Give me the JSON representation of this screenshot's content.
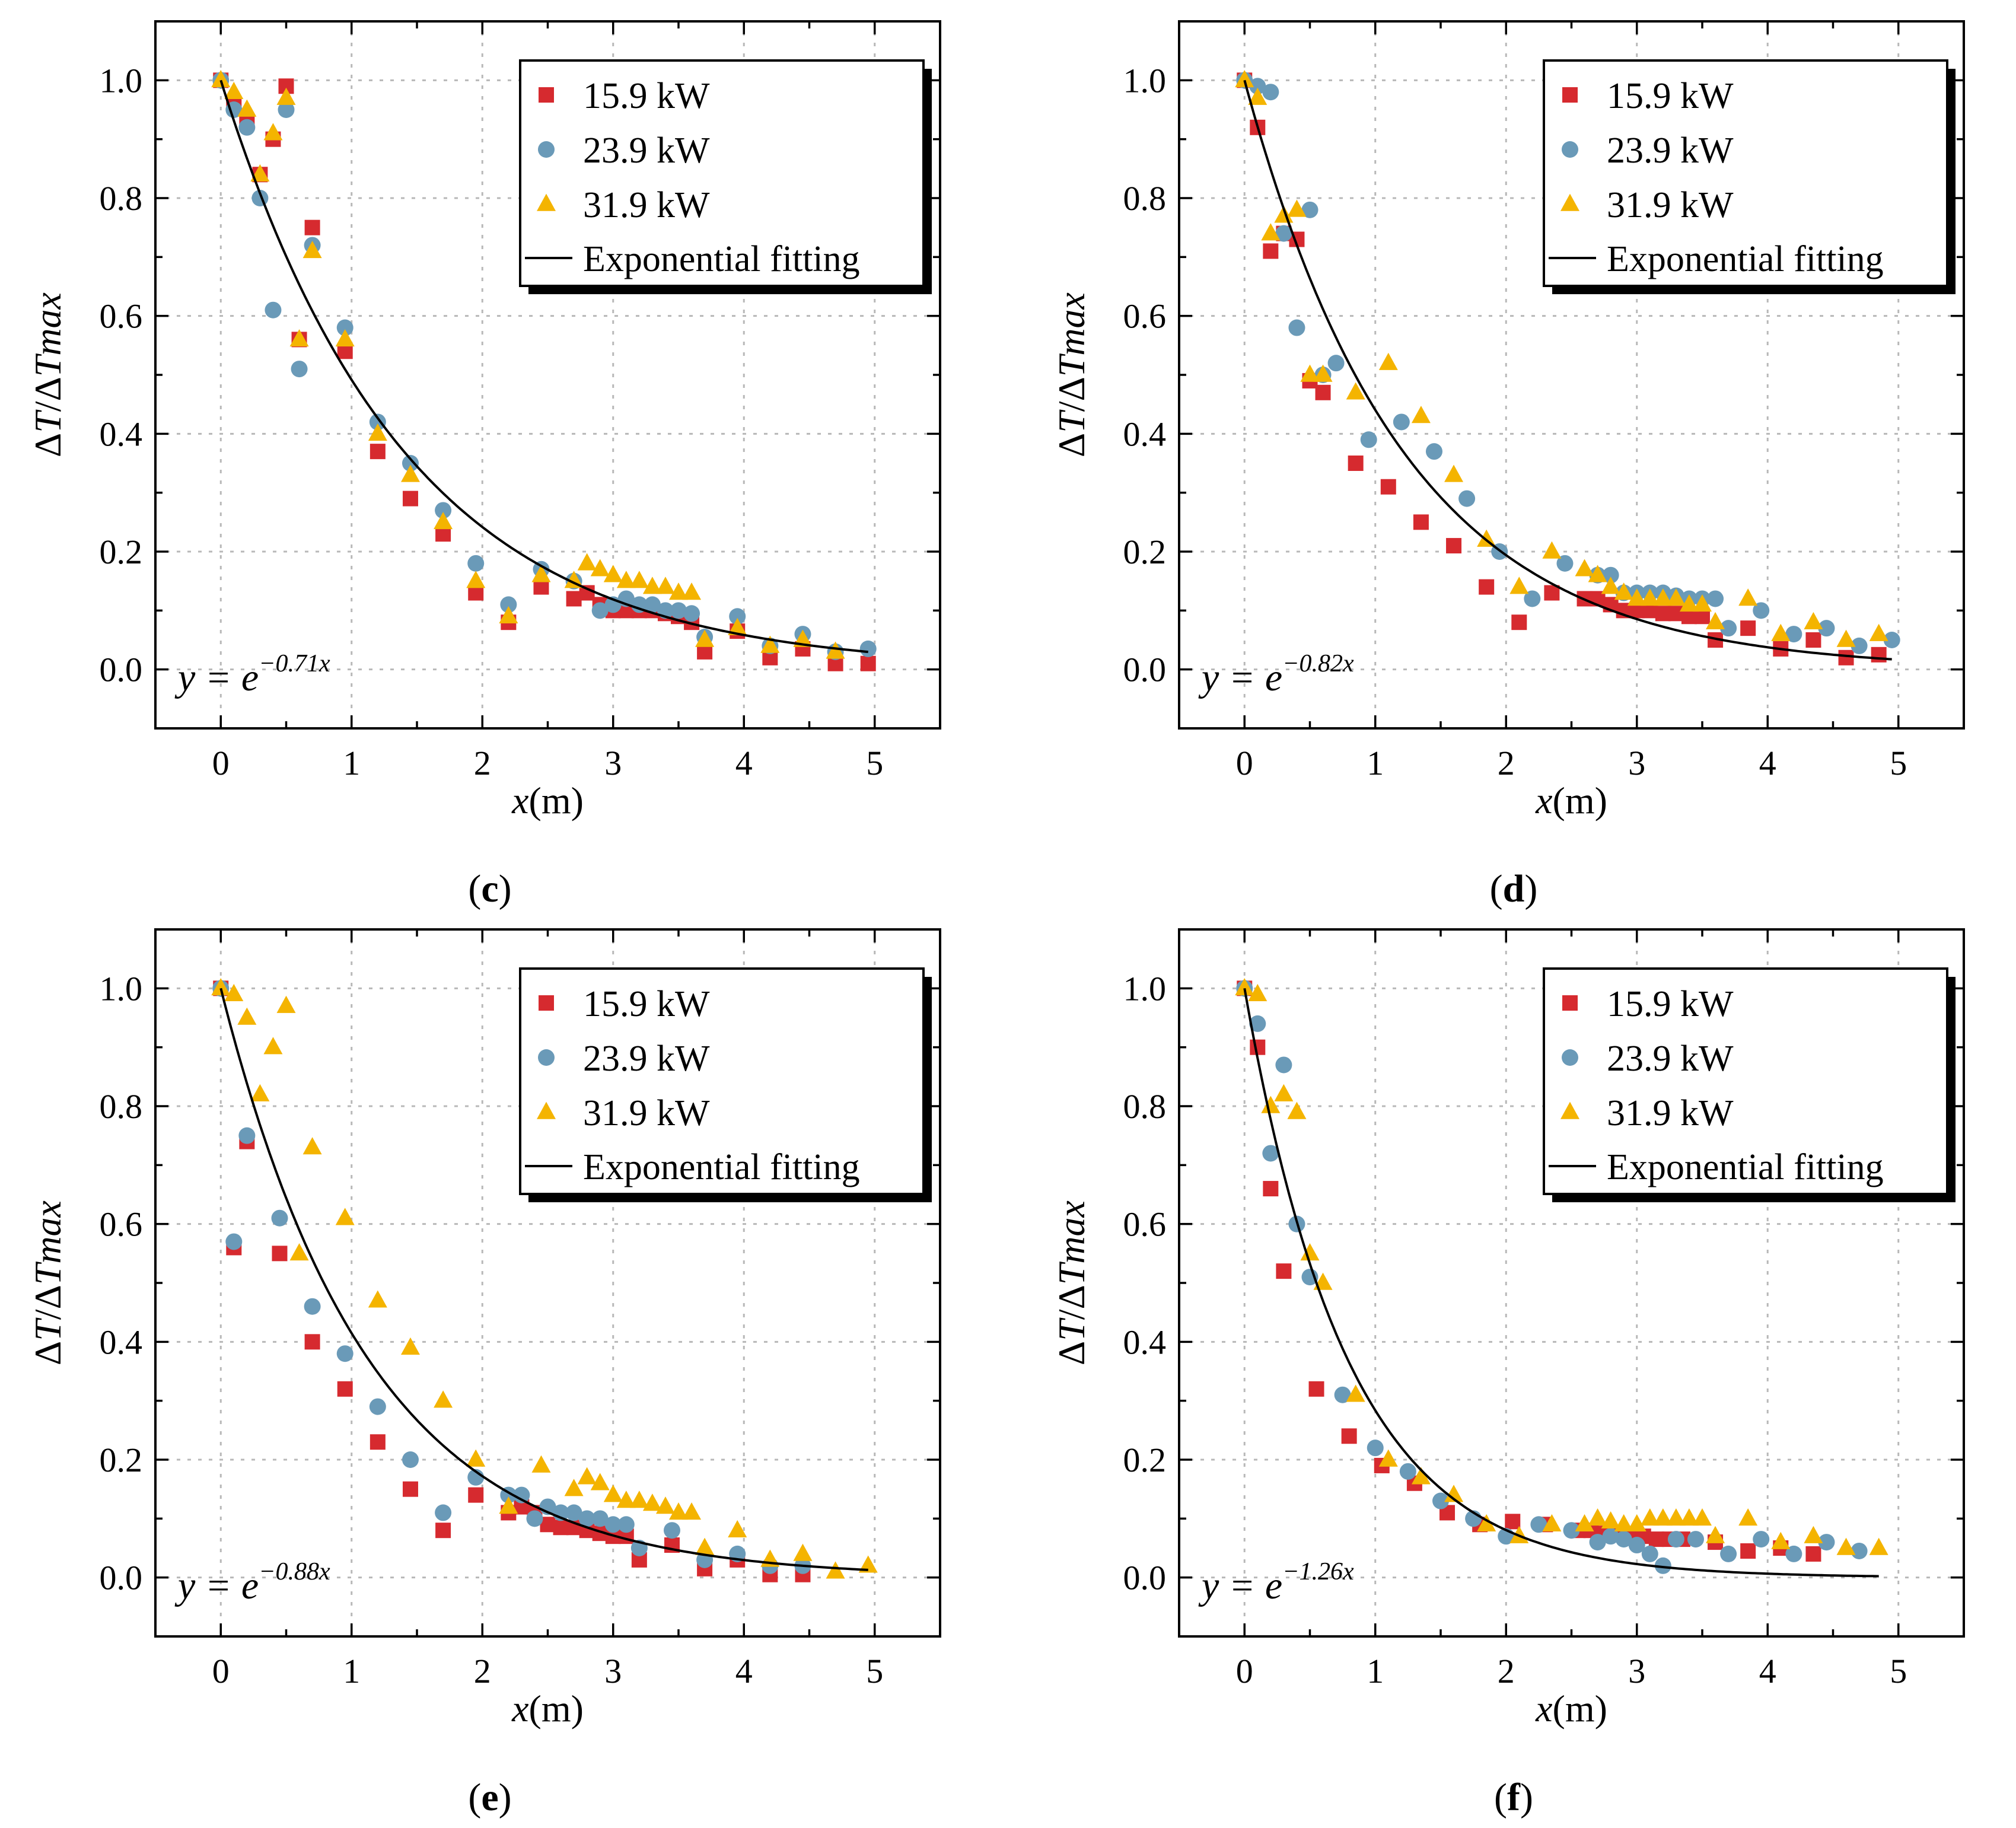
{
  "colors": {
    "s1": "#d62a2f",
    "s2": "#6a9ab8",
    "s3": "#f4b400",
    "fit": "#000000",
    "grid": "#b8b8b8"
  },
  "legend": {
    "s1": "15.9 kW",
    "s2": "23.9 kW",
    "s3": "31.9 kW",
    "fit": "Exponential fitting"
  },
  "axes": {
    "xlabel_var": "x",
    "xlabel_unit": "(m)",
    "ylabel_a": "Δ",
    "ylabel_b": "T",
    "ylabel_c": "/Δ",
    "ylabel_d": "Tmax",
    "xlim": [
      -0.5,
      5.5
    ],
    "ylim": [
      -0.1,
      1.1
    ],
    "xticks": [
      "0",
      "1",
      "2",
      "3",
      "4",
      "5"
    ],
    "yticks": [
      "0.0",
      "0.2",
      "0.4",
      "0.6",
      "0.8",
      "1.0"
    ]
  },
  "chart_data": [
    {
      "type": "scatter",
      "caption_letter": "c",
      "equation_base": "y = e",
      "equation_exp": "−0.71x",
      "fit_k": 0.71,
      "fit_xmax": 4.95,
      "series": [
        {
          "name": "15.9 kW",
          "marker": "square",
          "x": [
            0,
            0.1,
            0.2,
            0.3,
            0.4,
            0.5,
            0.6,
            0.7,
            0.95,
            1.2,
            1.45,
            1.7,
            1.95,
            2.2,
            2.45,
            2.7,
            2.8,
            2.9,
            3.0,
            3.1,
            3.2,
            3.3,
            3.4,
            3.5,
            3.6,
            3.7,
            3.95,
            4.2,
            4.45,
            4.7,
            4.95
          ],
          "y": [
            1.0,
            0.96,
            0.93,
            0.84,
            0.9,
            0.99,
            0.56,
            0.75,
            0.54,
            0.37,
            0.29,
            0.23,
            0.13,
            0.08,
            0.14,
            0.12,
            0.13,
            0.11,
            0.1,
            0.1,
            0.1,
            0.1,
            0.095,
            0.09,
            0.08,
            0.03,
            0.065,
            0.02,
            0.035,
            0.01,
            0.01
          ]
        },
        {
          "name": "23.9 kW",
          "marker": "circle",
          "x": [
            0,
            0.1,
            0.2,
            0.3,
            0.4,
            0.5,
            0.6,
            0.7,
            0.95,
            1.2,
            1.45,
            1.7,
            1.95,
            2.2,
            2.45,
            2.7,
            2.9,
            3.0,
            3.1,
            3.2,
            3.3,
            3.4,
            3.5,
            3.6,
            3.7,
            3.95,
            4.2,
            4.45,
            4.7,
            4.95
          ],
          "y": [
            1.0,
            0.95,
            0.92,
            0.8,
            0.61,
            0.95,
            0.51,
            0.72,
            0.58,
            0.42,
            0.35,
            0.27,
            0.18,
            0.11,
            0.17,
            0.15,
            0.1,
            0.11,
            0.12,
            0.11,
            0.11,
            0.1,
            0.1,
            0.095,
            0.055,
            0.09,
            0.04,
            0.06,
            0.03,
            0.035
          ]
        },
        {
          "name": "31.9 kW",
          "marker": "triangle",
          "x": [
            0,
            0.1,
            0.2,
            0.3,
            0.4,
            0.5,
            0.6,
            0.7,
            0.95,
            1.2,
            1.45,
            1.7,
            1.95,
            2.2,
            2.45,
            2.7,
            2.8,
            2.9,
            3.0,
            3.1,
            3.2,
            3.3,
            3.4,
            3.5,
            3.6,
            3.7,
            3.95,
            4.2,
            4.45,
            4.7
          ],
          "y": [
            1.0,
            0.98,
            0.95,
            0.84,
            0.91,
            0.97,
            0.56,
            0.71,
            0.56,
            0.4,
            0.33,
            0.25,
            0.15,
            0.09,
            0.16,
            0.15,
            0.18,
            0.17,
            0.16,
            0.15,
            0.15,
            0.14,
            0.14,
            0.13,
            0.13,
            0.05,
            0.07,
            0.04,
            0.05,
            0.03
          ]
        }
      ]
    },
    {
      "type": "scatter",
      "caption_letter": "d",
      "equation_base": "y = e",
      "equation_exp": "−0.82x",
      "fit_k": 0.82,
      "fit_xmax": 4.95,
      "series": [
        {
          "name": "15.9 kW",
          "marker": "square",
          "x": [
            0,
            0.1,
            0.2,
            0.3,
            0.4,
            0.5,
            0.6,
            0.85,
            1.1,
            1.35,
            1.6,
            1.85,
            2.1,
            2.35,
            2.6,
            2.7,
            2.8,
            2.9,
            3.0,
            3.1,
            3.2,
            3.3,
            3.4,
            3.5,
            3.6,
            3.85,
            4.1,
            4.35,
            4.6,
            4.85
          ],
          "y": [
            1.0,
            0.92,
            0.71,
            0.74,
            0.73,
            0.49,
            0.47,
            0.35,
            0.31,
            0.25,
            0.21,
            0.14,
            0.08,
            0.13,
            0.12,
            0.12,
            0.11,
            0.1,
            0.1,
            0.1,
            0.095,
            0.095,
            0.09,
            0.09,
            0.05,
            0.07,
            0.035,
            0.05,
            0.02,
            0.025
          ]
        },
        {
          "name": "23.9 kW",
          "marker": "circle",
          "x": [
            0,
            0.1,
            0.2,
            0.3,
            0.4,
            0.5,
            0.6,
            0.7,
            0.95,
            1.2,
            1.45,
            1.7,
            1.95,
            2.2,
            2.45,
            2.7,
            2.8,
            2.9,
            3.0,
            3.1,
            3.2,
            3.3,
            3.4,
            3.5,
            3.6,
            3.7,
            3.95,
            4.2,
            4.45,
            4.7,
            4.95
          ],
          "y": [
            1.0,
            0.99,
            0.98,
            0.74,
            0.58,
            0.78,
            0.5,
            0.52,
            0.39,
            0.42,
            0.37,
            0.29,
            0.2,
            0.12,
            0.18,
            0.16,
            0.16,
            0.13,
            0.13,
            0.13,
            0.13,
            0.125,
            0.12,
            0.12,
            0.12,
            0.07,
            0.1,
            0.06,
            0.07,
            0.04,
            0.05
          ]
        },
        {
          "name": "31.9 kW",
          "marker": "triangle",
          "x": [
            0,
            0.1,
            0.2,
            0.3,
            0.4,
            0.5,
            0.6,
            0.85,
            1.1,
            1.35,
            1.6,
            1.85,
            2.1,
            2.35,
            2.6,
            2.7,
            2.8,
            2.9,
            3.0,
            3.1,
            3.2,
            3.3,
            3.4,
            3.5,
            3.6,
            3.85,
            4.1,
            4.35,
            4.6,
            4.85
          ],
          "y": [
            1.0,
            0.97,
            0.74,
            0.77,
            0.78,
            0.5,
            0.5,
            0.47,
            0.52,
            0.43,
            0.33,
            0.22,
            0.14,
            0.2,
            0.17,
            0.16,
            0.14,
            0.13,
            0.12,
            0.12,
            0.12,
            0.12,
            0.11,
            0.11,
            0.08,
            0.12,
            0.06,
            0.08,
            0.05,
            0.06
          ]
        }
      ]
    },
    {
      "type": "scatter",
      "caption_letter": "e",
      "equation_base": "y = e",
      "equation_exp": "−0.88x",
      "fit_k": 0.88,
      "fit_xmax": 4.95,
      "series": [
        {
          "name": "15.9 kW",
          "marker": "square",
          "x": [
            0,
            0.1,
            0.2,
            0.45,
            0.7,
            0.95,
            1.2,
            1.45,
            1.7,
            1.95,
            2.2,
            2.3,
            2.4,
            2.5,
            2.6,
            2.7,
            2.8,
            2.9,
            3.0,
            3.1,
            3.2,
            3.45,
            3.7,
            3.95,
            4.2,
            4.45
          ],
          "y": [
            1.0,
            0.56,
            0.74,
            0.55,
            0.4,
            0.32,
            0.23,
            0.15,
            0.08,
            0.14,
            0.11,
            0.12,
            0.11,
            0.09,
            0.085,
            0.085,
            0.08,
            0.075,
            0.07,
            0.07,
            0.03,
            0.055,
            0.015,
            0.03,
            0.005,
            0.005
          ]
        },
        {
          "name": "23.9 kW",
          "marker": "circle",
          "x": [
            0,
            0.1,
            0.2,
            0.45,
            0.7,
            0.95,
            1.2,
            1.45,
            1.7,
            1.95,
            2.2,
            2.3,
            2.4,
            2.5,
            2.6,
            2.7,
            2.8,
            2.9,
            3.0,
            3.1,
            3.2,
            3.45,
            3.7,
            3.95,
            4.2,
            4.45
          ],
          "y": [
            1.0,
            0.57,
            0.75,
            0.61,
            0.46,
            0.38,
            0.29,
            0.2,
            0.11,
            0.17,
            0.14,
            0.14,
            0.1,
            0.12,
            0.11,
            0.11,
            0.1,
            0.1,
            0.09,
            0.09,
            0.05,
            0.08,
            0.03,
            0.04,
            0.02,
            0.02
          ]
        },
        {
          "name": "31.9 kW",
          "marker": "triangle",
          "x": [
            0,
            0.1,
            0.2,
            0.3,
            0.4,
            0.5,
            0.6,
            0.7,
            0.95,
            1.2,
            1.45,
            1.7,
            1.95,
            2.2,
            2.45,
            2.7,
            2.8,
            2.9,
            3.0,
            3.1,
            3.2,
            3.3,
            3.4,
            3.5,
            3.6,
            3.7,
            3.95,
            4.2,
            4.45,
            4.7,
            4.95
          ],
          "y": [
            1.0,
            0.99,
            0.95,
            0.82,
            0.9,
            0.97,
            0.55,
            0.73,
            0.61,
            0.47,
            0.39,
            0.3,
            0.2,
            0.12,
            0.19,
            0.15,
            0.17,
            0.16,
            0.14,
            0.13,
            0.13,
            0.125,
            0.12,
            0.11,
            0.11,
            0.05,
            0.08,
            0.03,
            0.04,
            0.01,
            0.02
          ]
        }
      ]
    },
    {
      "type": "scatter",
      "caption_letter": "f",
      "equation_base": "y = e",
      "equation_exp": "−1.26x",
      "fit_k": 1.26,
      "fit_xmax": 4.85,
      "series": [
        {
          "name": "15.9 kW",
          "marker": "square",
          "x": [
            0,
            0.1,
            0.2,
            0.3,
            0.55,
            0.8,
            1.05,
            1.3,
            1.55,
            1.8,
            2.05,
            2.3,
            2.55,
            2.65,
            2.75,
            2.85,
            2.95,
            3.05,
            3.15,
            3.25,
            3.35,
            3.6,
            3.85,
            4.1,
            4.35
          ],
          "y": [
            1.0,
            0.9,
            0.66,
            0.52,
            0.32,
            0.24,
            0.19,
            0.16,
            0.11,
            0.09,
            0.095,
            0.09,
            0.08,
            0.08,
            0.075,
            0.075,
            0.07,
            0.07,
            0.065,
            0.065,
            0.065,
            0.06,
            0.045,
            0.05,
            0.04
          ]
        },
        {
          "name": "23.9 kW",
          "marker": "circle",
          "x": [
            0,
            0.1,
            0.2,
            0.3,
            0.4,
            0.5,
            0.75,
            1.0,
            1.25,
            1.5,
            1.75,
            2.0,
            2.25,
            2.5,
            2.7,
            2.8,
            2.9,
            3.0,
            3.1,
            3.2,
            3.3,
            3.45,
            3.7,
            3.95,
            4.2,
            4.45,
            4.7
          ],
          "y": [
            1.0,
            0.94,
            0.72,
            0.87,
            0.6,
            0.51,
            0.31,
            0.22,
            0.18,
            0.13,
            0.1,
            0.07,
            0.09,
            0.08,
            0.06,
            0.07,
            0.065,
            0.055,
            0.04,
            0.02,
            0.065,
            0.065,
            0.04,
            0.065,
            0.04,
            0.06,
            0.045
          ]
        },
        {
          "name": "31.9 kW",
          "marker": "triangle",
          "x": [
            0,
            0.1,
            0.2,
            0.3,
            0.4,
            0.5,
            0.6,
            0.85,
            1.1,
            1.35,
            1.6,
            1.85,
            2.1,
            2.35,
            2.6,
            2.7,
            2.8,
            2.9,
            3.0,
            3.1,
            3.2,
            3.3,
            3.4,
            3.5,
            3.6,
            3.85,
            4.1,
            4.35,
            4.6,
            4.85
          ],
          "y": [
            1.0,
            0.99,
            0.8,
            0.82,
            0.79,
            0.55,
            0.5,
            0.31,
            0.2,
            0.17,
            0.14,
            0.09,
            0.07,
            0.09,
            0.09,
            0.1,
            0.095,
            0.09,
            0.09,
            0.1,
            0.1,
            0.1,
            0.1,
            0.1,
            0.07,
            0.1,
            0.06,
            0.07,
            0.05,
            0.05
          ]
        }
      ]
    }
  ]
}
